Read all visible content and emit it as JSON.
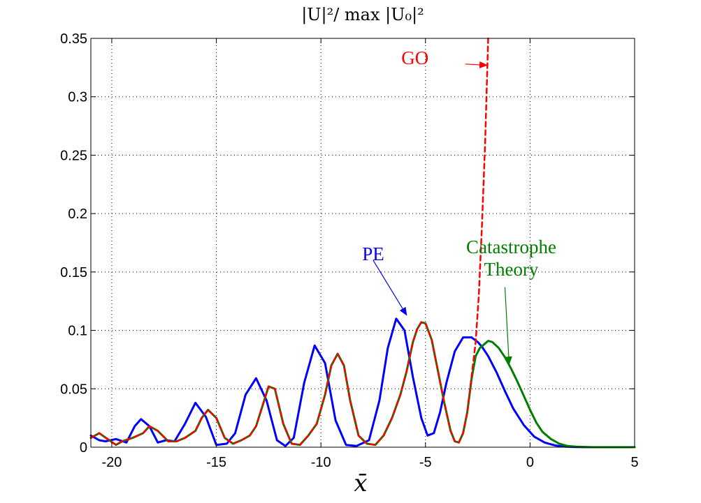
{
  "chart_data": {
    "type": "line",
    "title": "|U|²/ max |U₀|²",
    "xlabel": "x̄",
    "ylabel": "",
    "xlim": [
      -21,
      5
    ],
    "ylim": [
      0,
      0.35
    ],
    "grid": true,
    "xticks": [
      -20,
      -15,
      -10,
      -5,
      0,
      5
    ],
    "xtick_labels": [
      "-20",
      "-15",
      "-10",
      "-5",
      "0",
      "5"
    ],
    "yticks": [
      0,
      0.05,
      0.1,
      0.15,
      0.2,
      0.25,
      0.3,
      0.35
    ],
    "ytick_labels": [
      "0",
      "0.05",
      "0.1",
      "0.15",
      "0.2",
      "0.25",
      "0.3",
      "0.35"
    ],
    "series": [
      {
        "name": "PE",
        "color": "#0000ff",
        "style": "solid",
        "x": [
          -21,
          -20.6,
          -20.3,
          -19.8,
          -19.3,
          -18.9,
          -18.6,
          -18.2,
          -17.8,
          -17.4,
          -17.0,
          -16.5,
          -16.0,
          -15.5,
          -15.0,
          -14.5,
          -14.1,
          -13.6,
          -13.1,
          -12.6,
          -12.1,
          -11.7,
          -11.3,
          -10.8,
          -10.3,
          -9.8,
          -9.3,
          -8.8,
          -8.3,
          -7.7,
          -7.2,
          -6.8,
          -6.4,
          -6.0,
          -5.6,
          -5.2,
          -4.9,
          -4.6,
          -4.3,
          -4.0,
          -3.6,
          -3.2,
          -2.8,
          -2.5,
          -2.3,
          -2.0,
          -1.6,
          -1.2,
          -0.8,
          -0.3,
          0.2,
          0.7,
          1.2,
          1.7,
          2.2,
          3.0,
          4.0,
          5.0
        ],
        "y": [
          0.01,
          0.006,
          0.005,
          0.007,
          0.004,
          0.018,
          0.024,
          0.018,
          0.004,
          0.006,
          0.005,
          0.02,
          0.038,
          0.026,
          0.002,
          0.003,
          0.012,
          0.045,
          0.059,
          0.04,
          0.006,
          0.001,
          0.008,
          0.055,
          0.087,
          0.072,
          0.023,
          0.002,
          0.001,
          0.006,
          0.04,
          0.085,
          0.11,
          0.1,
          0.06,
          0.025,
          0.01,
          0.012,
          0.03,
          0.055,
          0.082,
          0.094,
          0.094,
          0.09,
          0.086,
          0.078,
          0.064,
          0.048,
          0.033,
          0.019,
          0.009,
          0.004,
          0.0015,
          0.0005,
          0.0002,
          0,
          0,
          0
        ]
      },
      {
        "name": "Catastrophe Theory",
        "color": "#007f00",
        "style": "solid",
        "x": [
          -21,
          -20.6,
          -20.2,
          -19.8,
          -19.5,
          -19.0,
          -18.5,
          -18.2,
          -17.8,
          -17.3,
          -16.9,
          -16.5,
          -16.0,
          -15.7,
          -15.4,
          -15.0,
          -14.6,
          -14.2,
          -13.8,
          -13.4,
          -13.1,
          -12.8,
          -12.5,
          -12.2,
          -11.8,
          -11.4,
          -11.0,
          -10.6,
          -10.2,
          -9.8,
          -9.5,
          -9.2,
          -8.9,
          -8.6,
          -8.2,
          -7.8,
          -7.4,
          -7.0,
          -6.6,
          -6.2,
          -5.9,
          -5.6,
          -5.4,
          -5.2,
          -5.0,
          -4.7,
          -4.4,
          -4.1,
          -3.8,
          -3.6,
          -3.4,
          -3.2,
          -3.0,
          -2.8,
          -2.6,
          -2.4,
          -2.2,
          -2.0,
          -1.8,
          -1.5,
          -1.2,
          -0.9,
          -0.6,
          -0.3,
          0,
          0.3,
          0.6,
          1.0,
          1.4,
          1.8,
          2.2,
          2.6,
          3.0,
          3.5,
          4.0,
          5.0
        ],
        "y": [
          0.008,
          0.012,
          0.007,
          0.002,
          0.005,
          0.008,
          0.012,
          0.018,
          0.014,
          0.005,
          0.005,
          0.008,
          0.014,
          0.025,
          0.032,
          0.025,
          0.008,
          0.003,
          0.006,
          0.01,
          0.018,
          0.035,
          0.052,
          0.05,
          0.02,
          0.003,
          0.002,
          0.01,
          0.02,
          0.045,
          0.07,
          0.08,
          0.07,
          0.04,
          0.01,
          0.003,
          0.002,
          0.01,
          0.025,
          0.045,
          0.065,
          0.09,
          0.101,
          0.107,
          0.106,
          0.092,
          0.065,
          0.038,
          0.014,
          0.005,
          0.004,
          0.012,
          0.03,
          0.058,
          0.078,
          0.085,
          0.088,
          0.091,
          0.09,
          0.085,
          0.077,
          0.067,
          0.056,
          0.044,
          0.032,
          0.021,
          0.013,
          0.007,
          0.003,
          0.001,
          0.0005,
          0.0002,
          0,
          0,
          0,
          0
        ]
      },
      {
        "name": "GO",
        "color": "#ff0000",
        "style": "dashed",
        "x": [
          -21,
          -20.6,
          -20.2,
          -19.8,
          -19.5,
          -19.0,
          -18.5,
          -18.2,
          -17.8,
          -17.3,
          -16.9,
          -16.5,
          -16.0,
          -15.7,
          -15.4,
          -15.0,
          -14.6,
          -14.2,
          -13.8,
          -13.4,
          -13.1,
          -12.8,
          -12.5,
          -12.2,
          -11.8,
          -11.4,
          -11.0,
          -10.6,
          -10.2,
          -9.8,
          -9.5,
          -9.2,
          -8.9,
          -8.6,
          -8.2,
          -7.8,
          -7.4,
          -7.0,
          -6.6,
          -6.2,
          -5.9,
          -5.6,
          -5.4,
          -5.2,
          -5.0,
          -4.7,
          -4.4,
          -4.1,
          -3.8,
          -3.6,
          -3.4,
          -3.2,
          -3.0,
          -2.8,
          -2.6,
          -2.45,
          -2.3,
          -2.15,
          -2.0
        ],
        "y": [
          0.008,
          0.012,
          0.007,
          0.002,
          0.005,
          0.008,
          0.012,
          0.018,
          0.014,
          0.005,
          0.005,
          0.008,
          0.014,
          0.025,
          0.032,
          0.025,
          0.008,
          0.003,
          0.006,
          0.01,
          0.018,
          0.035,
          0.052,
          0.05,
          0.02,
          0.003,
          0.002,
          0.01,
          0.02,
          0.045,
          0.07,
          0.08,
          0.07,
          0.04,
          0.01,
          0.003,
          0.002,
          0.01,
          0.025,
          0.045,
          0.065,
          0.09,
          0.101,
          0.107,
          0.106,
          0.092,
          0.065,
          0.038,
          0.014,
          0.005,
          0.004,
          0.012,
          0.03,
          0.06,
          0.09,
          0.13,
          0.19,
          0.26,
          0.35
        ]
      }
    ],
    "annotations": [
      {
        "text": "GO",
        "color": "#ff0000",
        "at": [
          -3.1,
          0.328
        ],
        "arrow_to": [
          -2.05,
          0.327
        ],
        "label_pos": [
          -5.5,
          0.328
        ]
      },
      {
        "text": "PE",
        "color": "#0000ff",
        "at": [
          -7.5,
          0.16
        ],
        "arrow_to": [
          -5.9,
          0.113
        ],
        "label_pos": [
          -7.5,
          0.16
        ]
      },
      {
        "text": "Catastrophe",
        "color": "#007f00",
        "label_pos": [
          -0.9,
          0.166
        ]
      },
      {
        "text": "Theory",
        "color": "#007f00",
        "label_pos": [
          -0.9,
          0.147
        ]
      },
      {
        "text": "",
        "color": "#007f00",
        "at": [
          -1.2,
          0.137
        ],
        "arrow_to": [
          -1.0,
          0.071
        ]
      }
    ]
  }
}
